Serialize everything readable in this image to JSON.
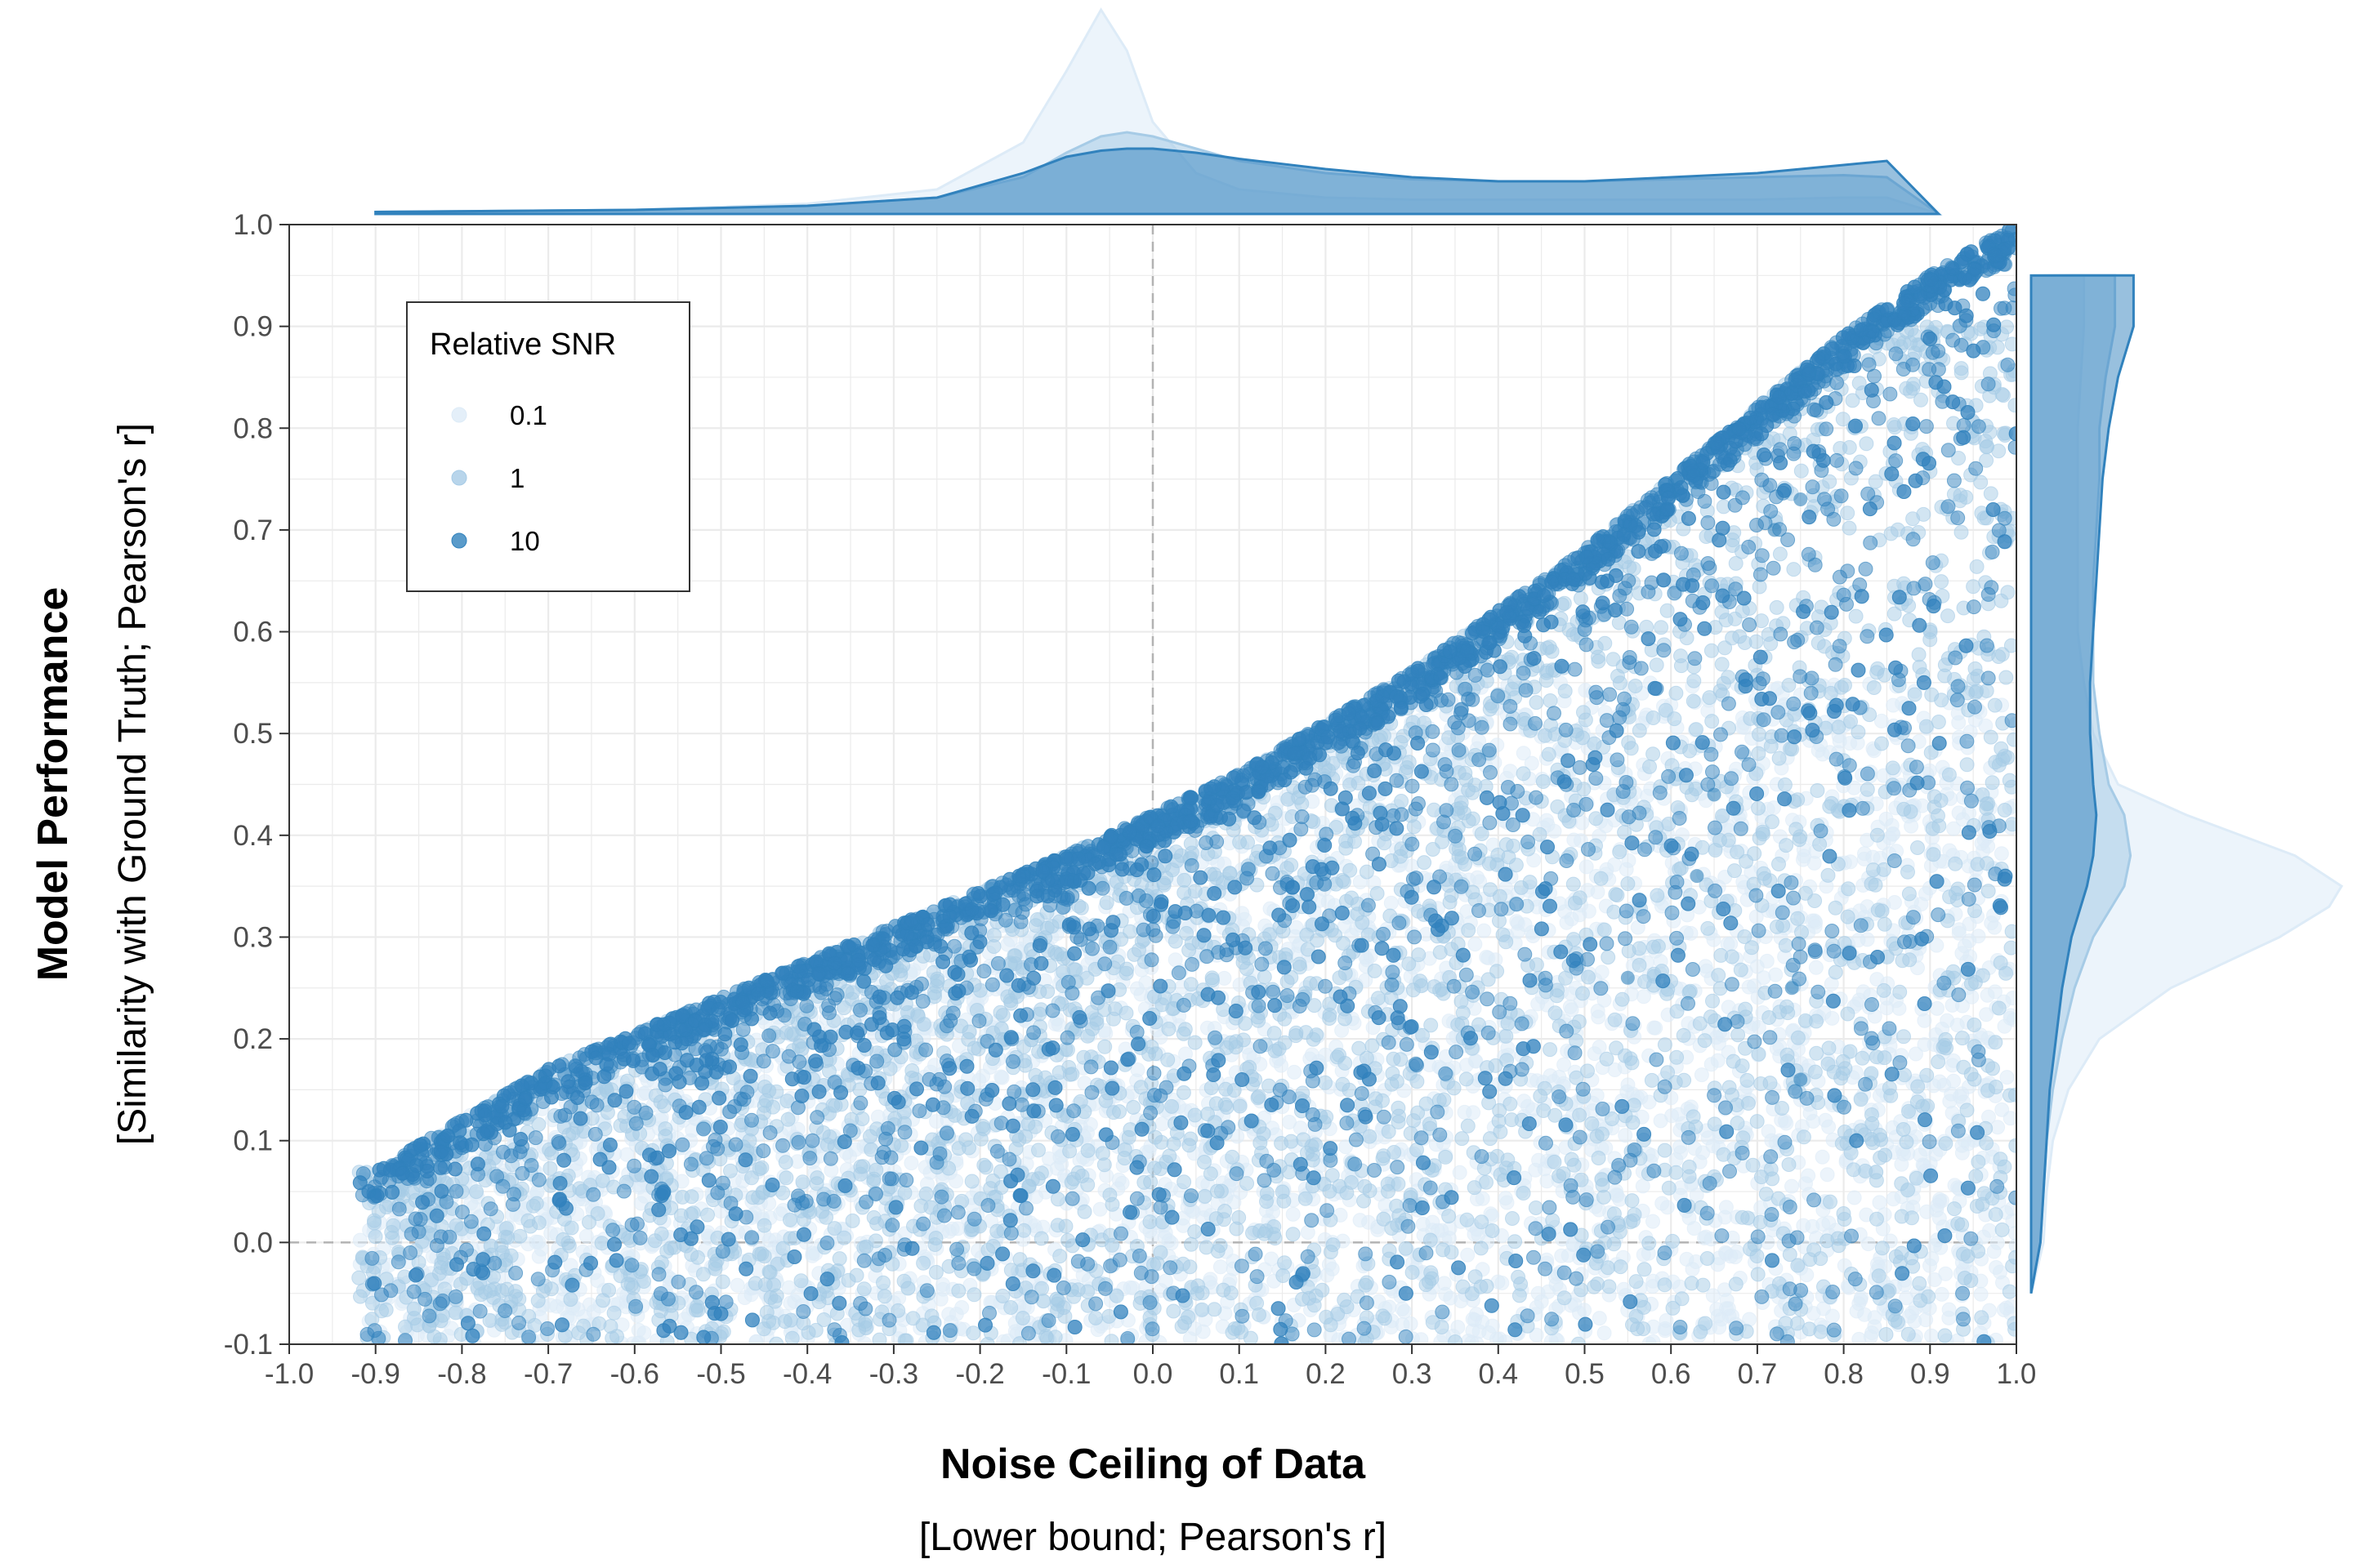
{
  "chart_data": {
    "type": "scatter",
    "xlabel": "Noise Ceiling of Data",
    "xlabel_sub": "[Lower bound; Pearson's r]",
    "ylabel": "Model Performance",
    "ylabel_sub": "[Similarity with Ground Truth; Pearson's r]",
    "xlim": [
      -1.0,
      1.0
    ],
    "ylim": [
      -0.1,
      1.0
    ],
    "x_ticks": [
      "-1.0",
      "-0.9",
      "-0.8",
      "-0.7",
      "-0.6",
      "-0.5",
      "-0.4",
      "-0.3",
      "-0.2",
      "-0.1",
      "0.0",
      "0.1",
      "0.2",
      "0.3",
      "0.4",
      "0.5",
      "0.6",
      "0.7",
      "0.8",
      "0.9",
      "1.0"
    ],
    "y_ticks": [
      "-0.1",
      "0.0",
      "0.1",
      "0.2",
      "0.3",
      "0.4",
      "0.5",
      "0.6",
      "0.7",
      "0.8",
      "0.9",
      "1.0"
    ],
    "grid": true,
    "reference_lines": {
      "x": 0.0,
      "y": 0.0,
      "style": "dashed"
    },
    "legend": {
      "title": "Relative SNR",
      "placement": "top-left",
      "entries": [
        {
          "label": "0.1",
          "color": "#ddebf7"
        },
        {
          "label": "1",
          "color": "#a6cbe6"
        },
        {
          "label": "10",
          "color": "#3182bd"
        }
      ]
    },
    "series": [
      {
        "name": "0.1",
        "color": "#ddebf7",
        "point_opacity": 0.55,
        "n_points": 3500,
        "cloud": {
          "center_y": 0.0,
          "spread_y": 0.15,
          "max_y": 0.55
        }
      },
      {
        "name": "1",
        "color": "#a6cbe6",
        "point_opacity": 0.5,
        "n_points": 3500,
        "cloud": {
          "center_y": 0.22,
          "spread_y": 0.25,
          "max_y": 0.9
        }
      },
      {
        "name": "10",
        "color": "#3182bd",
        "point_opacity": 0.5,
        "n_points": 4200,
        "cloud": {
          "center_y": 0.35,
          "spread_y": 0.25,
          "max_y": 1.0
        }
      }
    ],
    "upper_envelope": [
      [
        -0.9,
        0.07
      ],
      [
        -0.7,
        0.17
      ],
      [
        -0.5,
        0.24
      ],
      [
        -0.3,
        0.31
      ],
      [
        -0.1,
        0.38
      ],
      [
        0.0,
        0.42
      ],
      [
        0.1,
        0.46
      ],
      [
        0.2,
        0.51
      ],
      [
        0.3,
        0.56
      ],
      [
        0.4,
        0.62
      ],
      [
        0.5,
        0.68
      ],
      [
        0.6,
        0.75
      ],
      [
        0.7,
        0.82
      ],
      [
        0.8,
        0.89
      ],
      [
        0.9,
        0.95
      ],
      [
        1.0,
        1.0
      ]
    ],
    "outliers": [
      [
        0.74,
        0.25
      ],
      [
        0.75,
        0.16
      ],
      [
        0.63,
        0.36
      ],
      [
        0.65,
        0.44
      ],
      [
        0.72,
        0.7
      ],
      [
        0.75,
        0.73
      ],
      [
        0.55,
        0.26
      ]
    ],
    "marginal_x": {
      "x": [
        -0.9,
        -0.6,
        -0.4,
        -0.25,
        -0.15,
        -0.1,
        -0.06,
        -0.03,
        0.0,
        0.05,
        0.1,
        0.2,
        0.3,
        0.4,
        0.5,
        0.6,
        0.7,
        0.8,
        0.85,
        0.91
      ],
      "series": [
        {
          "name": "0.1",
          "density": [
            0.01,
            0.02,
            0.05,
            0.12,
            0.35,
            0.7,
            1.0,
            0.8,
            0.45,
            0.2,
            0.12,
            0.08,
            0.07,
            0.07,
            0.07,
            0.07,
            0.07,
            0.08,
            0.08,
            0.0
          ]
        },
        {
          "name": "1",
          "density": [
            0.01,
            0.02,
            0.04,
            0.08,
            0.18,
            0.3,
            0.38,
            0.4,
            0.38,
            0.32,
            0.26,
            0.2,
            0.17,
            0.16,
            0.16,
            0.17,
            0.18,
            0.19,
            0.18,
            0.0
          ]
        },
        {
          "name": "10",
          "density": [
            0.01,
            0.02,
            0.04,
            0.08,
            0.2,
            0.28,
            0.31,
            0.32,
            0.32,
            0.3,
            0.27,
            0.22,
            0.18,
            0.16,
            0.16,
            0.18,
            0.2,
            0.24,
            0.26,
            0.0
          ]
        }
      ]
    },
    "marginal_y": {
      "y": [
        -0.05,
        0.0,
        0.05,
        0.1,
        0.15,
        0.2,
        0.25,
        0.3,
        0.33,
        0.35,
        0.38,
        0.42,
        0.45,
        0.5,
        0.55,
        0.6,
        0.65,
        0.7,
        0.75,
        0.8,
        0.85,
        0.9,
        0.95
      ],
      "series": [
        {
          "name": "0.1",
          "density": [
            0.0,
            0.04,
            0.05,
            0.07,
            0.12,
            0.22,
            0.45,
            0.8,
            0.96,
            1.0,
            0.85,
            0.5,
            0.28,
            0.2,
            0.17,
            0.15,
            0.15,
            0.15,
            0.15,
            0.15,
            0.16,
            0.17,
            0.17
          ]
        },
        {
          "name": "1",
          "density": [
            0.0,
            0.03,
            0.04,
            0.05,
            0.07,
            0.1,
            0.14,
            0.2,
            0.26,
            0.3,
            0.32,
            0.3,
            0.25,
            0.22,
            0.2,
            0.2,
            0.2,
            0.21,
            0.22,
            0.22,
            0.24,
            0.27,
            0.27
          ]
        },
        {
          "name": "10",
          "density": [
            0.0,
            0.03,
            0.04,
            0.05,
            0.06,
            0.08,
            0.1,
            0.13,
            0.16,
            0.18,
            0.2,
            0.21,
            0.2,
            0.19,
            0.19,
            0.2,
            0.21,
            0.22,
            0.23,
            0.25,
            0.28,
            0.33,
            0.33
          ]
        }
      ]
    }
  }
}
